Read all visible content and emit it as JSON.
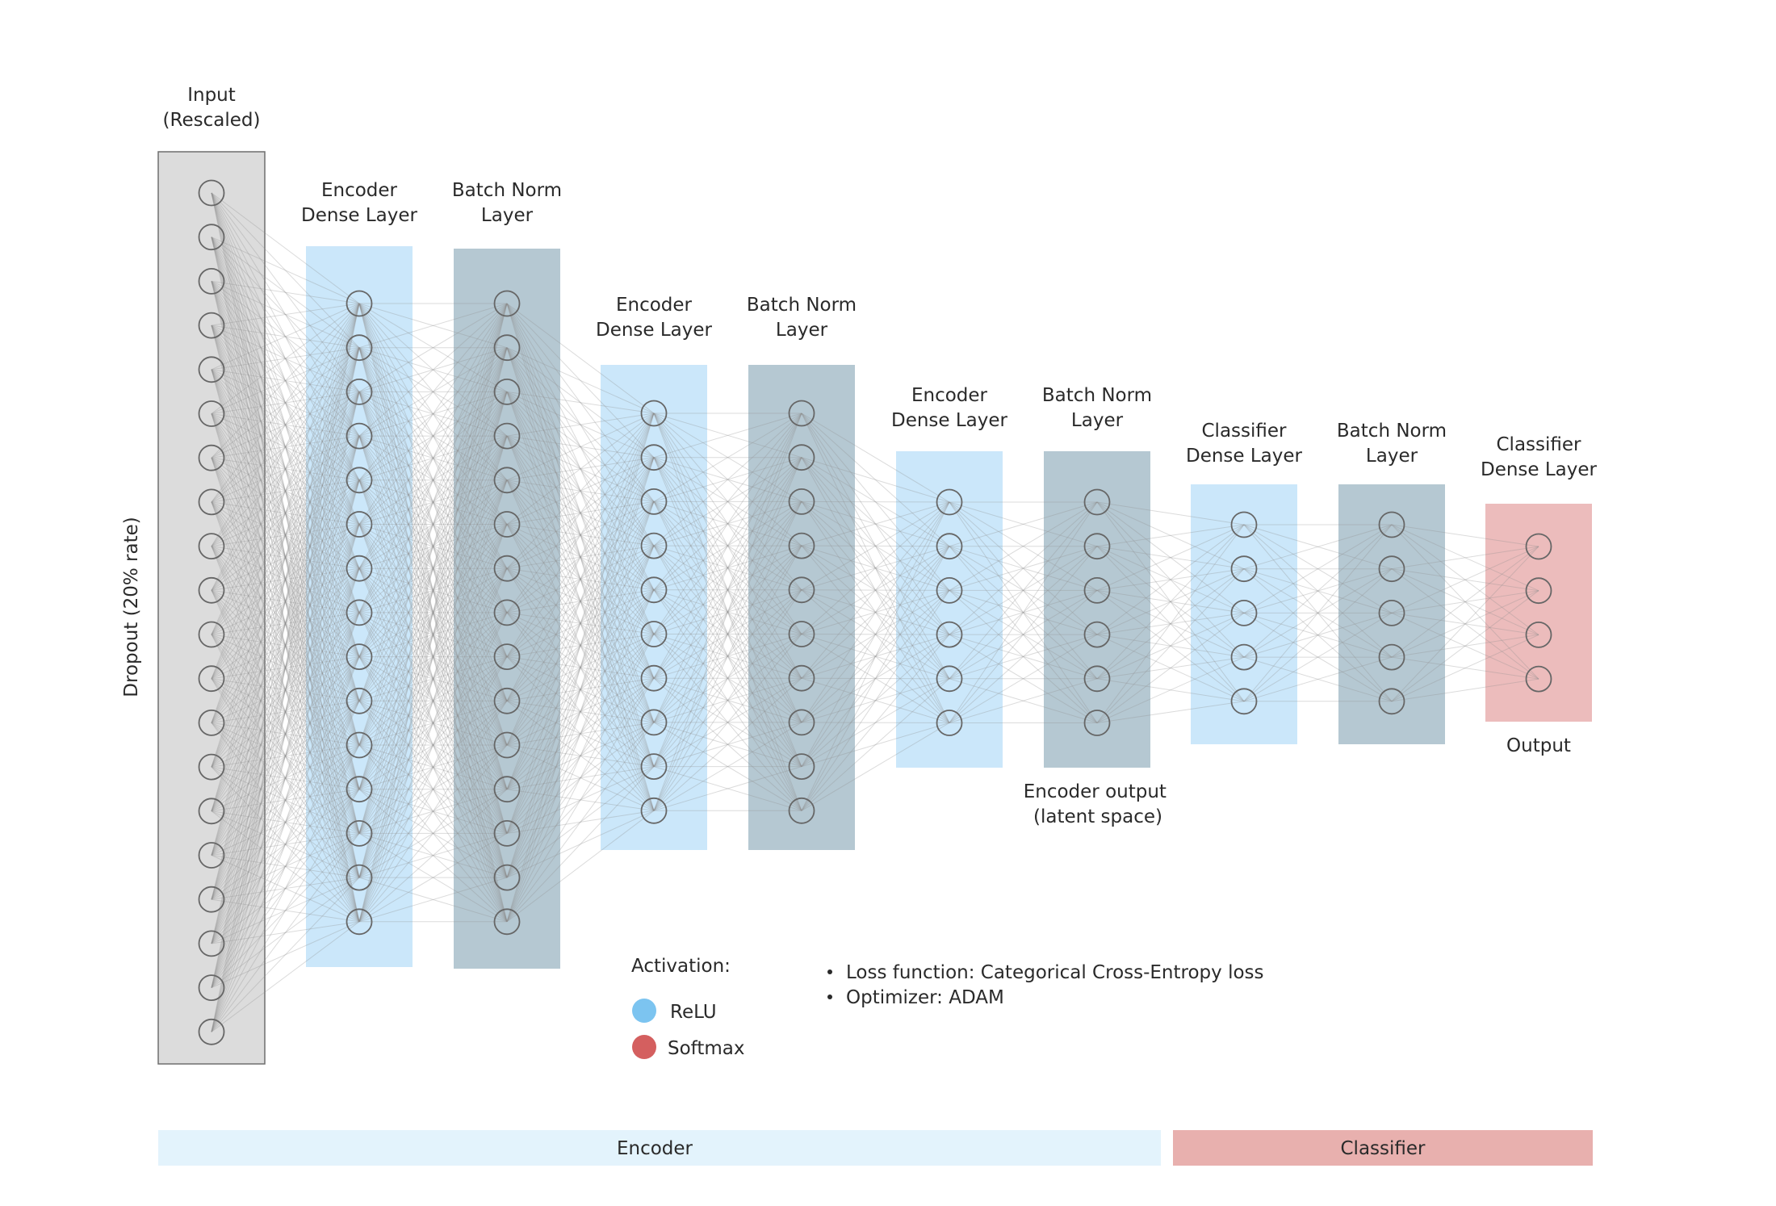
{
  "layers": [
    {
      "label_lines": [
        "Input",
        "(Rescaled)"
      ],
      "kind": "input",
      "nodes": 20,
      "color": "#dcdcdc"
    },
    {
      "label_lines": [
        "Encoder",
        "Dense Layer"
      ],
      "kind": "dense",
      "nodes": 15,
      "color": "#cbe7fa"
    },
    {
      "label_lines": [
        "Batch Norm",
        "Layer"
      ],
      "kind": "batchnorm",
      "nodes": 15,
      "color": "#b5c8d2"
    },
    {
      "label_lines": [
        "Encoder",
        "Dense Layer"
      ],
      "kind": "dense",
      "nodes": 10,
      "color": "#cbe7fa"
    },
    {
      "label_lines": [
        "Batch Norm",
        "Layer"
      ],
      "kind": "batchnorm",
      "nodes": 10,
      "color": "#b5c8d2"
    },
    {
      "label_lines": [
        "Encoder",
        "Dense Layer"
      ],
      "kind": "dense",
      "nodes": 6,
      "color": "#cbe7fa"
    },
    {
      "label_lines": [
        "Batch Norm",
        "Layer"
      ],
      "kind": "batchnorm",
      "nodes": 6,
      "color": "#b5c8d2"
    },
    {
      "label_lines": [
        "Classifier",
        "Dense Layer"
      ],
      "kind": "dense",
      "nodes": 5,
      "color": "#cbe7fa"
    },
    {
      "label_lines": [
        "Batch Norm",
        "Layer"
      ],
      "kind": "batchnorm",
      "nodes": 5,
      "color": "#b5c8d2"
    },
    {
      "label_lines": [
        "Classifier",
        "Dense Layer"
      ],
      "kind": "output",
      "nodes": 4,
      "color": "#ecbcbc"
    }
  ],
  "side_label": "Dropout (20% rate)",
  "latent_label_lines": [
    "Encoder output",
    "(latent space)"
  ],
  "output_label": "Output",
  "legend": {
    "title": "Activation:",
    "items": [
      {
        "label": "ReLU",
        "color": "#7cc4f0"
      },
      {
        "label": "Softmax",
        "color": "#d45f5f"
      }
    ]
  },
  "notes": [
    "Loss function: Categorical  Cross-Entropy loss",
    "Optimizer: ADAM"
  ],
  "sections": [
    {
      "label": "Encoder",
      "color": "#e3f3fc"
    },
    {
      "label": "Classifier",
      "color": "#e8b0ae"
    }
  ]
}
